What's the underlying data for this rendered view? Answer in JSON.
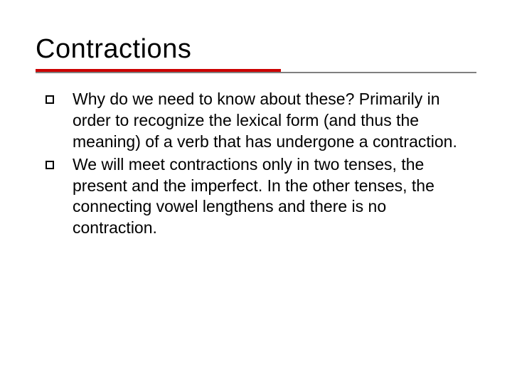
{
  "slide": {
    "title": "Contractions",
    "title_color": "#000000",
    "title_fontsize": 38,
    "rule_accent_color": "#cc0000",
    "rule_accent_width": 345,
    "rule_accent_height": 4,
    "rule_thin_color": "#808080",
    "rule_thin_width": 620,
    "rule_thin_height": 2,
    "background_color": "#ffffff",
    "body_fontsize": 23,
    "body_color": "#000000",
    "bullet_border_color": "#000000",
    "bullets": [
      {
        "text": "Why do we need to know about these? Primarily in order to recognize the lexical form (and thus the meaning) of a verb that has undergone a contraction."
      },
      {
        "text": "We will meet contractions only in two tenses, the present and the imperfect.  In the other tenses, the connecting vowel lengthens and there is no contraction."
      }
    ]
  }
}
